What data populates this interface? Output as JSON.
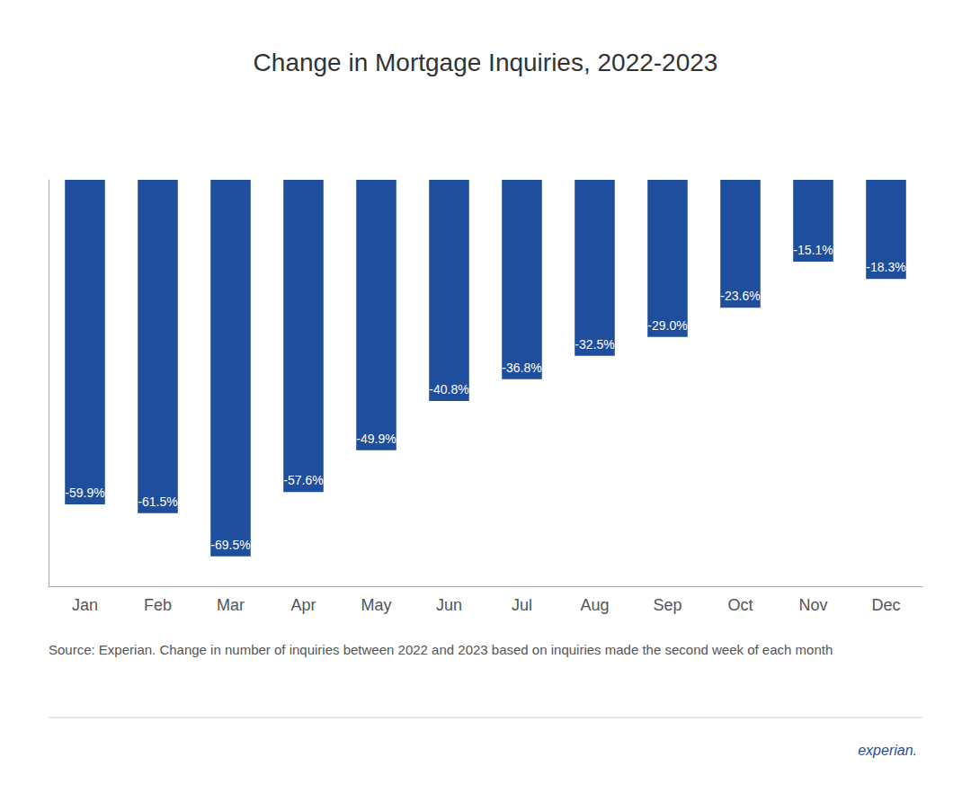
{
  "chart_data": {
    "type": "bar",
    "title": "Change in Mortgage Inquiries, 2022-2023",
    "categories": [
      "Jan",
      "Feb",
      "Mar",
      "Apr",
      "May",
      "Jun",
      "Jul",
      "Aug",
      "Sep",
      "Oct",
      "Nov",
      "Dec"
    ],
    "values": [
      -59.9,
      -61.5,
      -69.5,
      -57.6,
      -49.9,
      -40.8,
      -36.8,
      -32.5,
      -29.0,
      -23.6,
      -15.1,
      -18.3
    ],
    "value_labels": [
      "-59.9%",
      "-61.5%",
      "-69.5%",
      "-57.6%",
      "-49.9%",
      "-40.8%",
      "-36.8%",
      "-32.5%",
      "-29.0%",
      "-23.6%",
      "-15.1%",
      "-18.3%"
    ],
    "data_labels": true,
    "color": "#1F4E9C",
    "ylim": [
      -75,
      0
    ],
    "grid": false,
    "tick_labels": "x",
    "annotations": [
      "Source: Experian. Change in number of inquiries between 2022 and 2023 based on inquiries made the second week of each month",
      "experian."
    ]
  }
}
